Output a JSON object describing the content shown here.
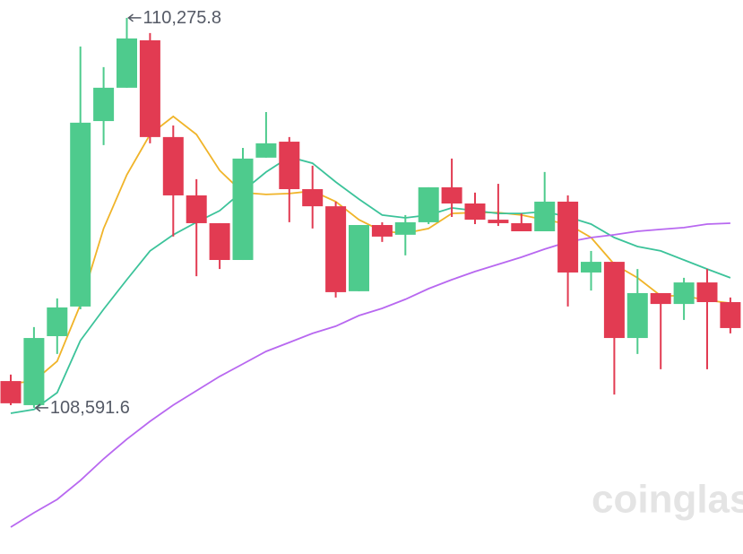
{
  "chart_data": {
    "type": "candlestick",
    "ylim": [
      107960,
      110353
    ],
    "up_color": "#4ecb8d",
    "down_color": "#e23b52",
    "open": [
      108707,
      108603,
      108901,
      109029,
      109830,
      109974,
      110179,
      109761,
      109509,
      109389,
      109230,
      109672,
      109741,
      109536,
      109462,
      109095,
      109381,
      109339,
      109393,
      109544,
      109474,
      109404,
      109389,
      109354,
      109482,
      109176,
      109222,
      108893,
      109087,
      109040,
      109133,
      109048
    ],
    "high": [
      108735,
      108940,
      109064,
      110152,
      110063,
      110275.8,
      110210,
      109811,
      109579,
      109389,
      109714,
      109869,
      109761,
      109637,
      109482,
      109381,
      109393,
      109424,
      109544,
      109668,
      109521,
      109559,
      109431,
      109610,
      109509,
      109269,
      109222,
      109191,
      109087,
      109153,
      109191,
      109068
    ],
    "low": [
      108603,
      108591.6,
      108824,
      109017,
      109726,
      109974,
      109734,
      109331,
      109160,
      109191,
      109230,
      109672,
      109393,
      109366,
      109068,
      109095,
      109308,
      109250,
      109385,
      109416,
      109385,
      109377,
      109354,
      109354,
      109029,
      109098,
      108649,
      108824,
      108758,
      108971,
      108758,
      108913
    ],
    "close": [
      108611,
      108893,
      109025,
      109823,
      109974,
      110187,
      109761,
      109509,
      109389,
      109230,
      109668,
      109734,
      109536,
      109462,
      109091,
      109381,
      109331,
      109393,
      109544,
      109474,
      109404,
      109389,
      109354,
      109482,
      109176,
      109222,
      108893,
      109087,
      109040,
      109133,
      109048,
      108936
    ],
    "lines": [
      {
        "color": "#f0b429",
        "values": [
          108696,
          108707,
          108793,
          109037,
          109366,
          109598,
          109772,
          109850,
          109772,
          109617,
          109521,
          109513,
          109517,
          109528,
          109482,
          109404,
          109354,
          109346,
          109366,
          109431,
          109435,
          109435,
          109424,
          109404,
          109385,
          109327,
          109211,
          109153,
          109075,
          109075,
          109056,
          109044
        ]
      },
      {
        "color": "#3cc39a",
        "values": [
          108568,
          108584,
          108657,
          108882,
          109017,
          109145,
          109269,
          109339,
          109393,
          109443,
          109528,
          109610,
          109675,
          109648,
          109567,
          109493,
          109424,
          109412,
          109424,
          109455,
          109443,
          109431,
          109431,
          109439,
          109416,
          109385,
          109327,
          109288,
          109269,
          109230,
          109191,
          109153
        ]
      },
      {
        "color": "#b868f0",
        "values": [
          108076,
          108138,
          108196,
          108278,
          108371,
          108456,
          108533,
          108603,
          108665,
          108727,
          108781,
          108835,
          108874,
          108913,
          108944,
          108990,
          109021,
          109060,
          109106,
          109145,
          109180,
          109211,
          109242,
          109277,
          109308,
          109327,
          109339,
          109354,
          109362,
          109370,
          109385,
          109389
        ]
      }
    ],
    "max_label": "110,275.8",
    "min_label": "108,591.6",
    "watermark": "coinglass"
  }
}
